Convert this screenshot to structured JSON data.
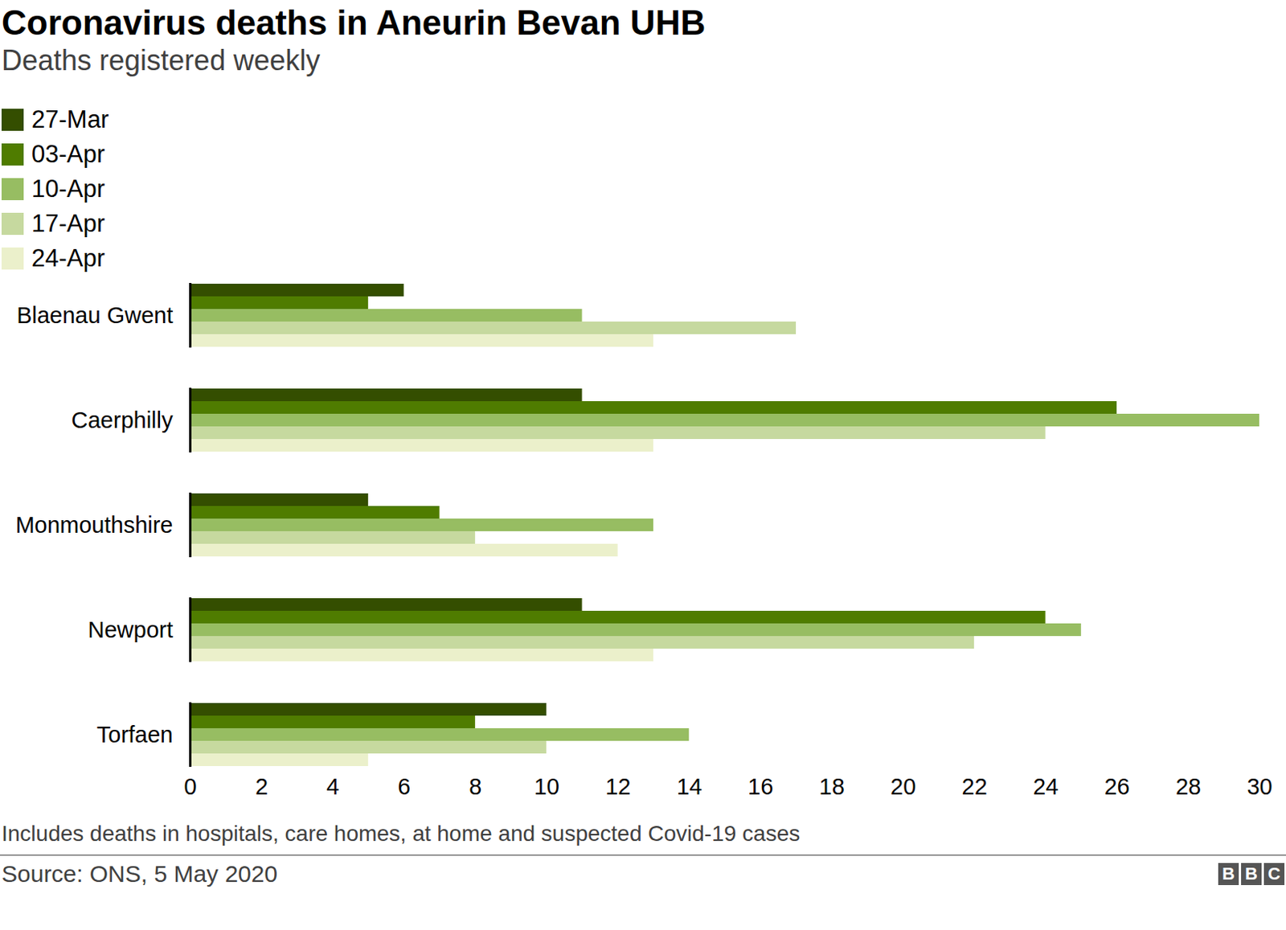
{
  "chart_data": {
    "type": "bar",
    "title": "Coronavirus deaths in Aneurin Bevan UHB",
    "subtitle": "Deaths registered weekly",
    "orientation": "horizontal",
    "legend": "top-left",
    "grid": false,
    "categories": [
      "Blaenau Gwent",
      "Caerphilly",
      "Monmouthshire",
      "Newport",
      "Torfaen"
    ],
    "series": [
      {
        "name": "27-Mar",
        "color": "#344e00",
        "values": [
          6,
          11,
          5,
          11,
          10
        ]
      },
      {
        "name": "03-Apr",
        "color": "#4f7c00",
        "values": [
          5,
          26,
          7,
          24,
          8
        ]
      },
      {
        "name": "10-Apr",
        "color": "#97bd62",
        "values": [
          11,
          30,
          13,
          25,
          14
        ]
      },
      {
        "name": "17-Apr",
        "color": "#c6d99f",
        "values": [
          17,
          24,
          8,
          22,
          10
        ]
      },
      {
        "name": "24-Apr",
        "color": "#ebf0cb",
        "values": [
          13,
          13,
          12,
          13,
          5
        ]
      }
    ],
    "xlim": [
      0,
      30
    ],
    "xticks": [
      0,
      2,
      4,
      6,
      8,
      10,
      12,
      14,
      16,
      18,
      20,
      22,
      24,
      26,
      28,
      30
    ],
    "caption": "Includes deaths in hospitals, care homes, at home and suspected Covid-19 cases",
    "source": "Source: ONS, 5 May 2020",
    "logo": "BBC"
  }
}
